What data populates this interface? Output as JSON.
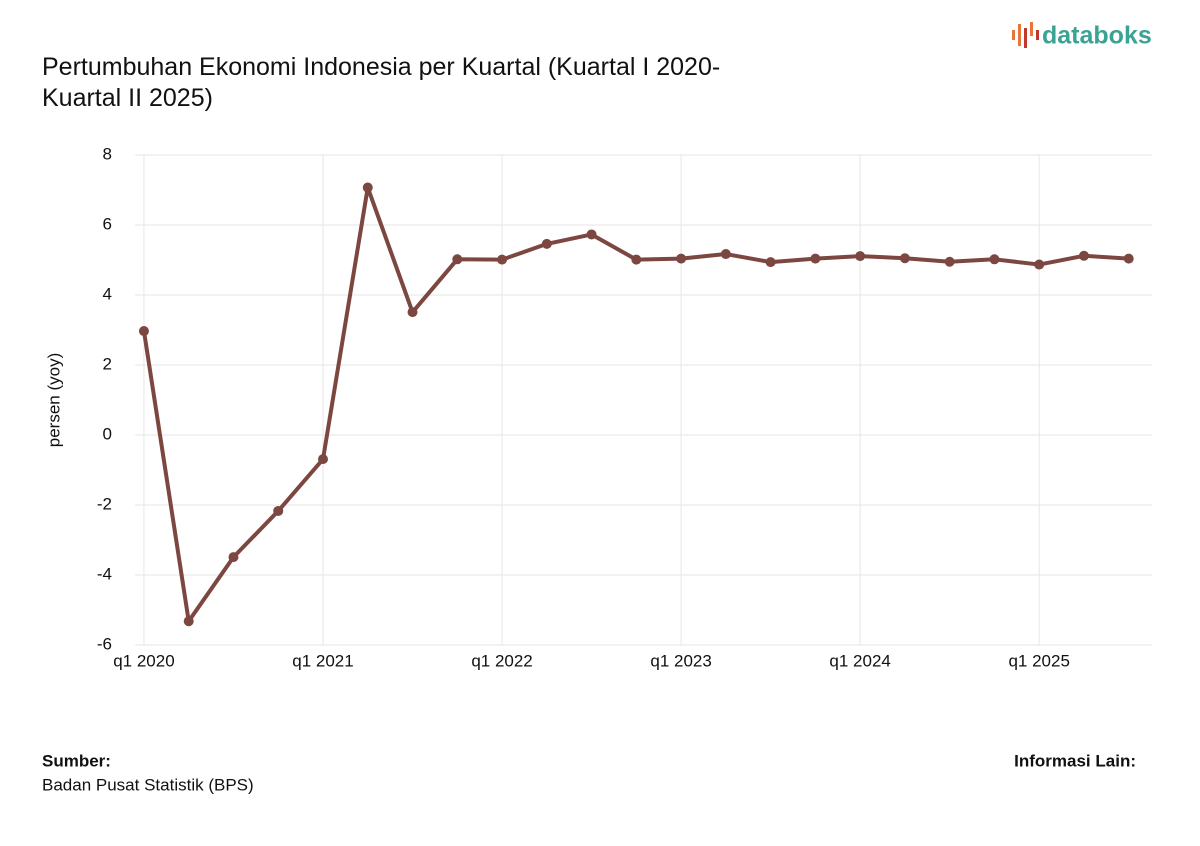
{
  "chart_data": {
    "type": "line",
    "title": "Pertumbuhan Ekonomi Indonesia per Kuartal (Kuartal I 2020-Kuartal II 2025)",
    "brand": "databoks",
    "ylabel": "persen (yoy)",
    "x": [
      2020,
      2020.25,
      2020.5,
      2020.75,
      2021,
      2021.25,
      2021.5,
      2021.75,
      2022,
      2022.25,
      2022.5,
      2022.75,
      2023,
      2023.25,
      2023.5,
      2023.75,
      2024,
      2024.25,
      2024.5,
      2024.75,
      2025,
      2025.25,
      2025.5
    ],
    "series": [
      {
        "name": "persen (yoy)",
        "color": "#7d4741",
        "values": [
          2.97,
          -5.32,
          -3.49,
          -2.17,
          -0.69,
          7.07,
          3.51,
          5.02,
          5.01,
          5.46,
          5.73,
          5.01,
          5.04,
          5.17,
          4.94,
          5.04,
          5.11,
          5.05,
          4.95,
          5.02,
          4.87,
          5.12,
          5.04
        ]
      }
    ],
    "xlim": [
      2019.95,
      2025.63
    ],
    "xticks": [
      {
        "value": 2020,
        "label": "q1 2020"
      },
      {
        "value": 2021,
        "label": "q1 2021"
      },
      {
        "value": 2022,
        "label": "q1 2022"
      },
      {
        "value": 2023,
        "label": "q1 2023"
      },
      {
        "value": 2024,
        "label": "q1 2024"
      },
      {
        "value": 2025,
        "label": "q1 2025"
      }
    ],
    "ylim": [
      -6,
      8
    ],
    "yticks": [
      -6,
      -4,
      -2,
      0,
      2,
      4,
      6,
      8
    ],
    "grid": true,
    "source_label": "Sumber:",
    "source": "Badan Pusat Statistik (BPS)",
    "info_label": "Informasi Lain:"
  }
}
